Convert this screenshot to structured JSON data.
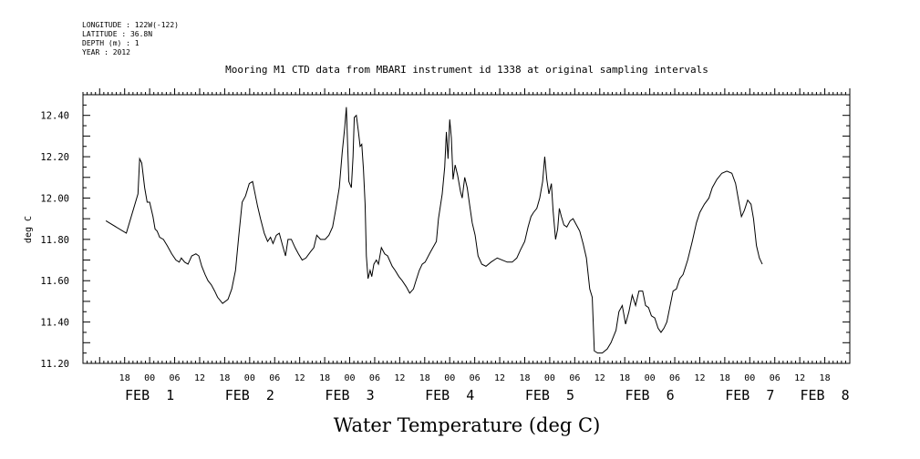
{
  "header": [
    "LONGITUDE : 122W(-122)",
    "LATITUDE : 36.8N",
    "DEPTH (m) : 1",
    "YEAR : 2012"
  ],
  "chart_data": {
    "type": "line",
    "title": "Mooring M1 CTD data from MBARI instrument id 1338 at original sampling intervals",
    "xlabel": "Water Temperature (deg C)",
    "ylabel": "deg C",
    "xlim": [
      -16,
      168
    ],
    "ylim": [
      11.2,
      12.5
    ],
    "yticks": [
      "11.20",
      "11.40",
      "11.60",
      "11.80",
      "12.00",
      "12.20",
      "12.40"
    ],
    "hour_ticks": [
      {
        "x": -6,
        "label": "18"
      },
      {
        "x": 0,
        "label": "00"
      },
      {
        "x": 6,
        "label": "06"
      },
      {
        "x": 12,
        "label": "12"
      },
      {
        "x": 18,
        "label": "18"
      },
      {
        "x": 24,
        "label": "00"
      },
      {
        "x": 30,
        "label": "06"
      },
      {
        "x": 36,
        "label": "12"
      },
      {
        "x": 42,
        "label": "18"
      },
      {
        "x": 48,
        "label": "00"
      },
      {
        "x": 54,
        "label": "06"
      },
      {
        "x": 60,
        "label": "12"
      },
      {
        "x": 66,
        "label": "18"
      },
      {
        "x": 72,
        "label": "00"
      },
      {
        "x": 78,
        "label": "06"
      },
      {
        "x": 84,
        "label": "12"
      },
      {
        "x": 90,
        "label": "18"
      },
      {
        "x": 96,
        "label": "00"
      },
      {
        "x": 102,
        "label": "06"
      },
      {
        "x": 108,
        "label": "12"
      },
      {
        "x": 114,
        "label": "18"
      },
      {
        "x": 120,
        "label": "00"
      },
      {
        "x": 126,
        "label": "06"
      },
      {
        "x": 132,
        "label": "12"
      },
      {
        "x": 138,
        "label": "18"
      },
      {
        "x": 144,
        "label": "00"
      },
      {
        "x": 150,
        "label": "06"
      },
      {
        "x": 156,
        "label": "12"
      },
      {
        "x": 162,
        "label": "18"
      }
    ],
    "day_labels": [
      {
        "x": 0,
        "label": "FEB  1"
      },
      {
        "x": 24,
        "label": "FEB  2"
      },
      {
        "x": 48,
        "label": "FEB  3"
      },
      {
        "x": 72,
        "label": "FEB  4"
      },
      {
        "x": 96,
        "label": "FEB  5"
      },
      {
        "x": 120,
        "label": "FEB  6"
      },
      {
        "x": 144,
        "label": "FEB  7"
      },
      {
        "x": 162,
        "label": "FEB  8"
      }
    ],
    "series": [
      {
        "values": [
          [
            -10.5,
            11.89
          ],
          [
            -5.6,
            11.83
          ],
          [
            -2.8,
            12.02
          ],
          [
            -2.4,
            12.19
          ],
          [
            -1.9,
            12.17
          ],
          [
            -1.2,
            12.05
          ],
          [
            -0.6,
            11.98
          ],
          [
            0,
            11.98
          ],
          [
            0.8,
            11.91
          ],
          [
            1.3,
            11.85
          ],
          [
            1.8,
            11.84
          ],
          [
            2.4,
            11.81
          ],
          [
            3.3,
            11.8
          ],
          [
            4.2,
            11.77
          ],
          [
            5.3,
            11.73
          ],
          [
            6.3,
            11.7
          ],
          [
            7.1,
            11.69
          ],
          [
            7.6,
            11.71
          ],
          [
            8.4,
            11.69
          ],
          [
            9.2,
            11.68
          ],
          [
            10.1,
            11.72
          ],
          [
            11.1,
            11.73
          ],
          [
            11.8,
            11.72
          ],
          [
            12.5,
            11.67
          ],
          [
            13.3,
            11.63
          ],
          [
            14.0,
            11.6
          ],
          [
            14.8,
            11.58
          ],
          [
            15.6,
            11.55
          ],
          [
            16.3,
            11.52
          ],
          [
            17.5,
            11.49
          ],
          [
            18.8,
            11.51
          ],
          [
            19.7,
            11.56
          ],
          [
            20.6,
            11.65
          ],
          [
            21.4,
            11.82
          ],
          [
            22.2,
            11.98
          ],
          [
            23.0,
            12.01
          ],
          [
            23.9,
            12.07
          ],
          [
            24.7,
            12.08
          ],
          [
            25.3,
            12.02
          ],
          [
            25.9,
            11.96
          ],
          [
            26.6,
            11.9
          ],
          [
            27.5,
            11.83
          ],
          [
            28.3,
            11.79
          ],
          [
            29.0,
            11.81
          ],
          [
            29.6,
            11.78
          ],
          [
            30.4,
            11.82
          ],
          [
            31.1,
            11.83
          ],
          [
            31.9,
            11.77
          ],
          [
            32.6,
            11.72
          ],
          [
            33.2,
            11.8
          ],
          [
            34.0,
            11.8
          ],
          [
            34.9,
            11.76
          ],
          [
            35.7,
            11.73
          ],
          [
            36.6,
            11.7
          ],
          [
            37.5,
            11.71
          ],
          [
            38.6,
            11.74
          ],
          [
            39.4,
            11.76
          ],
          [
            40.1,
            11.82
          ],
          [
            41.0,
            11.8
          ],
          [
            42.1,
            11.8
          ],
          [
            43.0,
            11.82
          ],
          [
            43.9,
            11.86
          ],
          [
            44.7,
            11.95
          ],
          [
            45.5,
            12.05
          ],
          [
            46.2,
            12.22
          ],
          [
            46.8,
            12.34
          ],
          [
            47.2,
            12.44
          ],
          [
            47.5,
            12.26
          ],
          [
            47.8,
            12.08
          ],
          [
            48.4,
            12.05
          ],
          [
            48.8,
            12.2
          ],
          [
            49.1,
            12.39
          ],
          [
            49.6,
            12.4
          ],
          [
            50.1,
            12.32
          ],
          [
            50.5,
            12.25
          ],
          [
            50.9,
            12.26
          ],
          [
            51.3,
            12.14
          ],
          [
            51.7,
            11.97
          ],
          [
            52.0,
            11.72
          ],
          [
            52.4,
            11.61
          ],
          [
            52.9,
            11.65
          ],
          [
            53.3,
            11.62
          ],
          [
            53.8,
            11.68
          ],
          [
            54.4,
            11.7
          ],
          [
            54.9,
            11.68
          ],
          [
            55.6,
            11.76
          ],
          [
            56.4,
            11.73
          ],
          [
            57.1,
            11.72
          ],
          [
            58.2,
            11.67
          ],
          [
            58.9,
            11.65
          ],
          [
            59.8,
            11.62
          ],
          [
            60.6,
            11.6
          ],
          [
            61.6,
            11.57
          ],
          [
            62.4,
            11.54
          ],
          [
            63.3,
            11.56
          ],
          [
            63.9,
            11.6
          ],
          [
            64.7,
            11.65
          ],
          [
            65.4,
            11.68
          ],
          [
            66.1,
            11.69
          ],
          [
            67.4,
            11.74
          ],
          [
            68.8,
            11.79
          ],
          [
            69.3,
            11.9
          ],
          [
            70.2,
            12.02
          ],
          [
            70.8,
            12.15
          ],
          [
            71.2,
            12.32
          ],
          [
            71.6,
            12.19
          ],
          [
            72.0,
            12.38
          ],
          [
            72.4,
            12.29
          ],
          [
            72.8,
            12.09
          ],
          [
            73.3,
            12.16
          ],
          [
            73.9,
            12.11
          ],
          [
            74.6,
            12.03
          ],
          [
            75.0,
            12.0
          ],
          [
            75.6,
            12.1
          ],
          [
            76.2,
            12.05
          ],
          [
            76.9,
            11.95
          ],
          [
            77.4,
            11.88
          ],
          [
            78.1,
            11.82
          ],
          [
            78.8,
            11.72
          ],
          [
            79.7,
            11.68
          ],
          [
            80.7,
            11.67
          ],
          [
            81.9,
            11.69
          ],
          [
            83.4,
            11.71
          ],
          [
            84.6,
            11.7
          ],
          [
            85.8,
            11.69
          ],
          [
            87.0,
            11.69
          ],
          [
            88.1,
            11.71
          ],
          [
            89.0,
            11.75
          ],
          [
            90.0,
            11.79
          ],
          [
            90.8,
            11.86
          ],
          [
            91.5,
            11.91
          ],
          [
            92.1,
            11.93
          ],
          [
            92.9,
            11.95
          ],
          [
            93.6,
            12.0
          ],
          [
            94.3,
            12.08
          ],
          [
            94.8,
            12.2
          ],
          [
            95.3,
            12.09
          ],
          [
            95.8,
            12.02
          ],
          [
            96.4,
            12.07
          ],
          [
            96.8,
            11.94
          ],
          [
            97.4,
            11.8
          ],
          [
            97.9,
            11.85
          ],
          [
            98.3,
            11.95
          ],
          [
            98.8,
            11.91
          ],
          [
            99.4,
            11.87
          ],
          [
            100.1,
            11.86
          ],
          [
            100.9,
            11.89
          ],
          [
            101.6,
            11.9
          ],
          [
            102.4,
            11.87
          ],
          [
            103.2,
            11.84
          ],
          [
            104.0,
            11.78
          ],
          [
            104.8,
            11.71
          ],
          [
            105.6,
            11.56
          ],
          [
            106.2,
            11.52
          ],
          [
            106.7,
            11.26
          ],
          [
            107.5,
            11.25
          ],
          [
            108.6,
            11.25
          ],
          [
            109.8,
            11.27
          ],
          [
            110.7,
            11.3
          ],
          [
            111.9,
            11.36
          ],
          [
            112.6,
            11.45
          ],
          [
            113.4,
            11.48
          ],
          [
            114.2,
            11.39
          ],
          [
            115.0,
            11.45
          ],
          [
            115.8,
            11.53
          ],
          [
            116.6,
            11.48
          ],
          [
            117.4,
            11.55
          ],
          [
            118.3,
            11.55
          ],
          [
            119.0,
            11.48
          ],
          [
            119.7,
            11.47
          ],
          [
            120.4,
            11.43
          ],
          [
            121.2,
            11.42
          ],
          [
            122.0,
            11.37
          ],
          [
            122.7,
            11.35
          ],
          [
            123.4,
            11.37
          ],
          [
            124.1,
            11.4
          ],
          [
            124.9,
            11.48
          ],
          [
            125.6,
            11.55
          ],
          [
            126.4,
            11.56
          ],
          [
            127.2,
            11.61
          ],
          [
            128.0,
            11.63
          ],
          [
            129.1,
            11.7
          ],
          [
            130.2,
            11.79
          ],
          [
            131.2,
            11.88
          ],
          [
            132.0,
            11.93
          ],
          [
            133.1,
            11.97
          ],
          [
            134.2,
            12.0
          ],
          [
            135.0,
            12.05
          ],
          [
            136.1,
            12.09
          ],
          [
            137.3,
            12.12
          ],
          [
            138.5,
            12.13
          ],
          [
            139.7,
            12.12
          ],
          [
            140.6,
            12.07
          ],
          [
            141.3,
            11.99
          ],
          [
            142.0,
            11.91
          ],
          [
            142.7,
            11.94
          ],
          [
            143.5,
            11.99
          ],
          [
            144.3,
            11.97
          ],
          [
            144.9,
            11.9
          ],
          [
            145.6,
            11.77
          ],
          [
            146.3,
            11.71
          ],
          [
            147.0,
            11.68
          ]
        ]
      }
    ]
  }
}
